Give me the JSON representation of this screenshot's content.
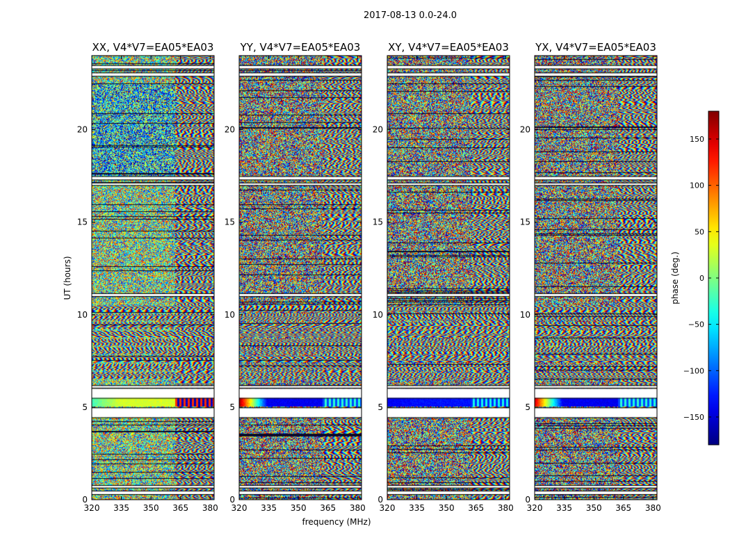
{
  "figure": {
    "suptitle": "2017-08-13 0.0-24.0",
    "xlabel": "frequency (MHz)",
    "ylabel": "UT (hours)",
    "colorbar_label": "phase (deg.)"
  },
  "chart_data": {
    "type": "heatmap",
    "title": "2017-08-13 0.0-24.0",
    "xlabel": "frequency (MHz)",
    "ylabel": "UT (hours)",
    "xlim": [
      320,
      382
    ],
    "ylim": [
      0,
      24
    ],
    "x_ticks": [
      320,
      335,
      350,
      365,
      380
    ],
    "y_ticks": [
      0,
      5,
      10,
      15,
      20
    ],
    "colorbar": {
      "label": "phase (deg.)",
      "range": [
        -180,
        180
      ],
      "ticks": [
        -150,
        -100,
        -50,
        0,
        50,
        100,
        150
      ],
      "colormap": "jet"
    },
    "panels": [
      {
        "title": "XX, V4*V7=EA05*EA03",
        "band_5h_phase": [
          -20,
          30
        ],
        "band_5h_tail_phase": 120
      },
      {
        "title": "YY, V4*V7=EA05*EA03",
        "band_5h_phase": [
          170,
          -140
        ],
        "band_5h_tail_phase": -110
      },
      {
        "title": "XY, V4*V7=EA05*EA03",
        "band_5h_phase": [
          -140,
          -130
        ],
        "band_5h_tail_phase": -120
      },
      {
        "title": "YX, V4*V7=EA05*EA03",
        "band_5h_phase": [
          150,
          -140
        ],
        "band_5h_tail_phase": -110
      }
    ],
    "data_gaps_ut": [
      [
        0.3,
        0.45
      ],
      [
        0.65,
        0.75
      ],
      [
        4.45,
        4.95
      ],
      [
        5.5,
        6.0
      ],
      [
        6.05,
        6.15
      ],
      [
        11.0,
        11.12
      ],
      [
        17.0,
        17.1
      ],
      [
        17.3,
        17.45
      ],
      [
        22.9,
        23.05
      ],
      [
        23.3,
        23.45
      ]
    ],
    "fringe_frequency_start_mhz": 362
  }
}
